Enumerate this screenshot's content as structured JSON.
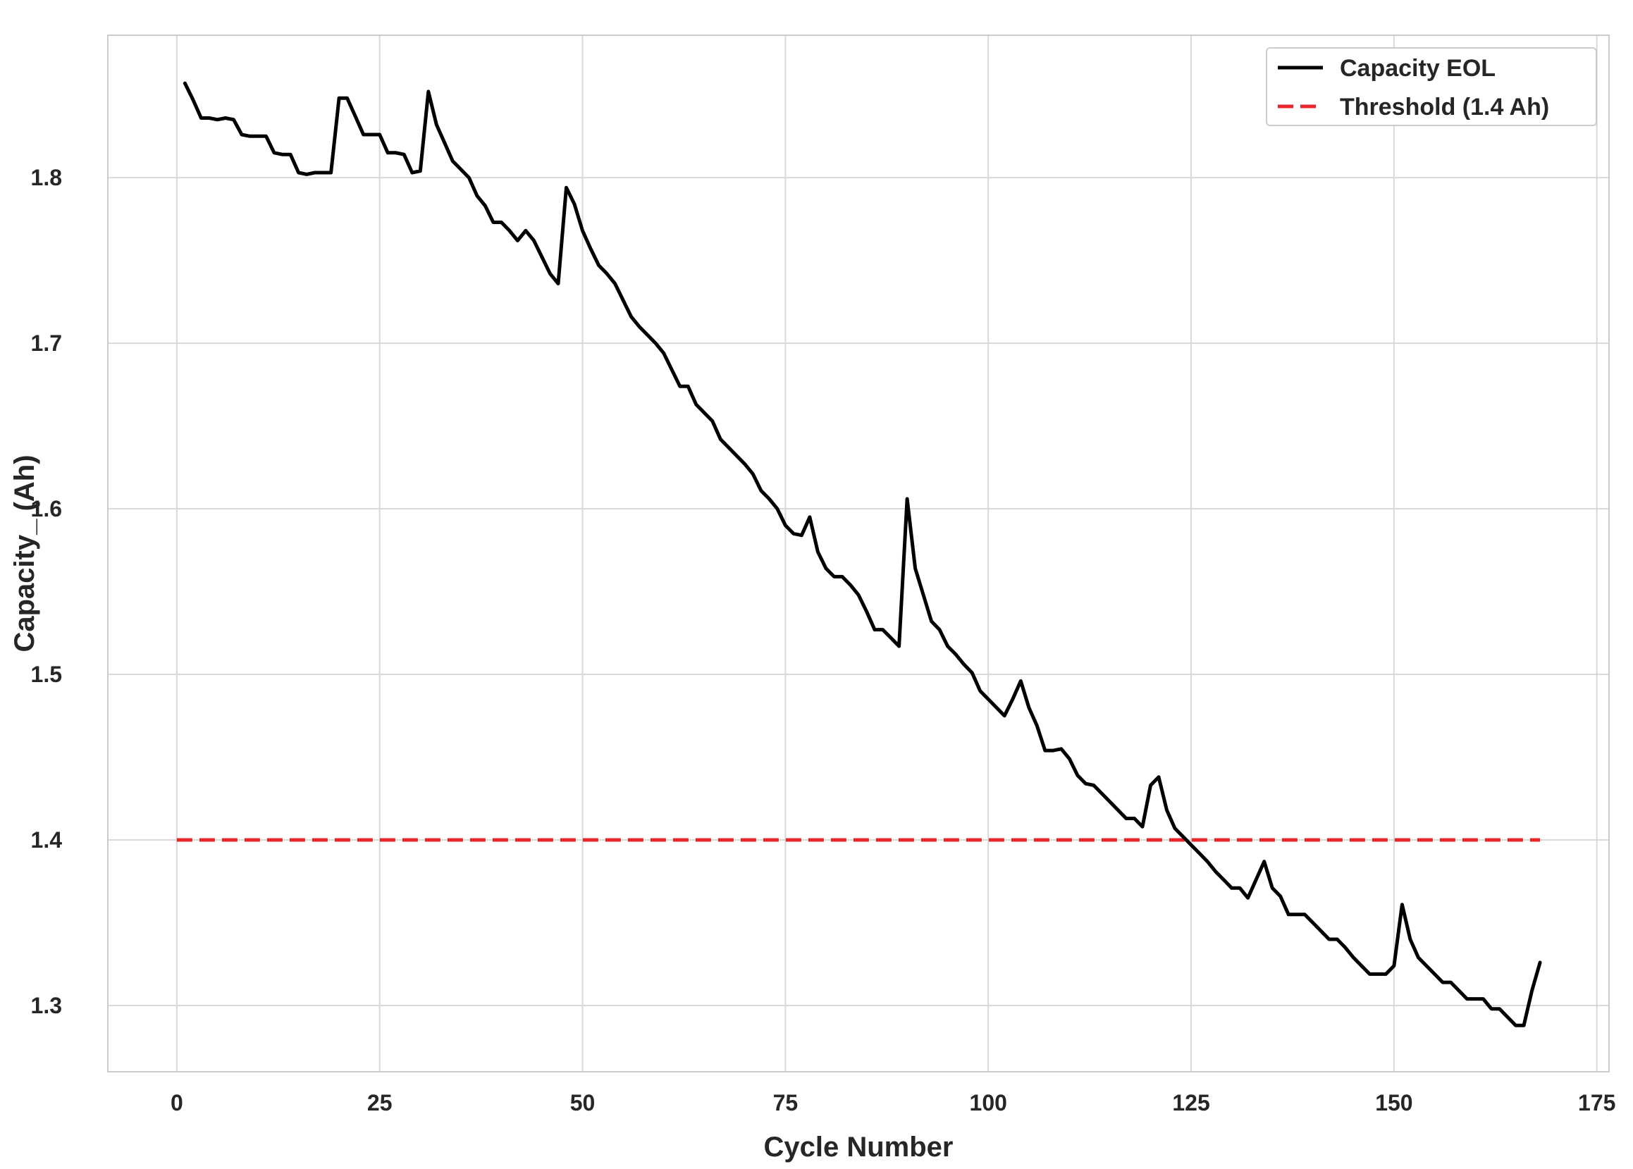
{
  "chart_data": {
    "type": "line",
    "xlabel": "Cycle Number",
    "ylabel": "Capacity_ (Ah)",
    "xlim": [
      -8.5,
      176.5
    ],
    "ylim": [
      1.26,
      1.886
    ],
    "xticks": [
      0,
      25,
      50,
      75,
      100,
      125,
      150,
      175
    ],
    "yticks": [
      1.3,
      1.4,
      1.5,
      1.6,
      1.7,
      1.8
    ],
    "xtick_labels": [
      "0",
      "25",
      "50",
      "75",
      "100",
      "125",
      "150",
      "175"
    ],
    "ytick_labels": [
      "1.3",
      "1.4",
      "1.5",
      "1.6",
      "1.7",
      "1.8"
    ],
    "grid": true,
    "legend_position": "top-right",
    "series": [
      {
        "name": "Capacity EOL",
        "color": "#000000",
        "style": "solid",
        "x": [
          1,
          2,
          3,
          4,
          5,
          6,
          7,
          8,
          9,
          10,
          11,
          12,
          13,
          14,
          15,
          16,
          17,
          18,
          19,
          20,
          21,
          22,
          23,
          24,
          25,
          26,
          27,
          28,
          29,
          30,
          31,
          32,
          33,
          34,
          35,
          36,
          37,
          38,
          39,
          40,
          41,
          42,
          43,
          44,
          45,
          46,
          47,
          48,
          49,
          50,
          51,
          52,
          53,
          54,
          55,
          56,
          57,
          58,
          59,
          60,
          61,
          62,
          63,
          64,
          65,
          66,
          67,
          68,
          69,
          70,
          71,
          72,
          73,
          74,
          75,
          76,
          77,
          78,
          79,
          80,
          81,
          82,
          83,
          84,
          85,
          86,
          87,
          88,
          89,
          90,
          91,
          92,
          93,
          94,
          95,
          96,
          97,
          98,
          99,
          100,
          101,
          102,
          103,
          104,
          105,
          106,
          107,
          108,
          109,
          110,
          111,
          112,
          113,
          114,
          115,
          116,
          117,
          118,
          119,
          120,
          121,
          122,
          123,
          124,
          125,
          126,
          127,
          128,
          129,
          130,
          131,
          132,
          133,
          134,
          135,
          136,
          137,
          138,
          139,
          140,
          141,
          142,
          143,
          144,
          145,
          146,
          147,
          148,
          149,
          150,
          151,
          152,
          153,
          154,
          155,
          156,
          157,
          158,
          159,
          160,
          161,
          162,
          163,
          164,
          165,
          166,
          167,
          168
        ],
        "values": [
          1.857,
          1.847,
          1.836,
          1.836,
          1.835,
          1.836,
          1.835,
          1.826,
          1.825,
          1.825,
          1.825,
          1.815,
          1.814,
          1.814,
          1.803,
          1.802,
          1.803,
          1.803,
          1.803,
          1.848,
          1.848,
          1.837,
          1.826,
          1.826,
          1.826,
          1.815,
          1.815,
          1.814,
          1.803,
          1.804,
          1.852,
          1.832,
          1.821,
          1.81,
          1.805,
          1.8,
          1.789,
          1.783,
          1.773,
          1.773,
          1.768,
          1.762,
          1.768,
          1.762,
          1.752,
          1.742,
          1.736,
          1.794,
          1.784,
          1.768,
          1.757,
          1.747,
          1.742,
          1.736,
          1.726,
          1.716,
          1.71,
          1.705,
          1.7,
          1.694,
          1.684,
          1.674,
          1.674,
          1.663,
          1.658,
          1.653,
          1.642,
          1.637,
          1.632,
          1.627,
          1.621,
          1.611,
          1.606,
          1.6,
          1.59,
          1.585,
          1.584,
          1.595,
          1.574,
          1.564,
          1.559,
          1.559,
          1.554,
          1.548,
          1.538,
          1.527,
          1.527,
          1.522,
          1.517,
          1.606,
          1.564,
          1.548,
          1.532,
          1.527,
          1.517,
          1.512,
          1.506,
          1.501,
          1.49,
          1.485,
          1.48,
          1.475,
          1.485,
          1.496,
          1.48,
          1.469,
          1.454,
          1.454,
          1.455,
          1.449,
          1.439,
          1.434,
          1.433,
          1.428,
          1.423,
          1.418,
          1.413,
          1.413,
          1.408,
          1.433,
          1.438,
          1.418,
          1.407,
          1.402,
          1.397,
          1.392,
          1.387,
          1.381,
          1.376,
          1.371,
          1.371,
          1.365,
          1.376,
          1.387,
          1.371,
          1.366,
          1.355,
          1.355,
          1.355,
          1.35,
          1.345,
          1.34,
          1.34,
          1.335,
          1.329,
          1.324,
          1.319,
          1.319,
          1.319,
          1.324,
          1.361,
          1.34,
          1.329,
          1.324,
          1.319,
          1.314,
          1.314,
          1.309,
          1.304,
          1.304,
          1.304,
          1.298,
          1.298,
          1.293,
          1.288,
          1.288,
          1.309,
          1.326
        ]
      },
      {
        "name": "Threshold (1.4 Ah)",
        "color": "#e8252b",
        "style": "dashed",
        "x": [
          0,
          168
        ],
        "values": [
          1.4,
          1.4
        ]
      }
    ]
  }
}
